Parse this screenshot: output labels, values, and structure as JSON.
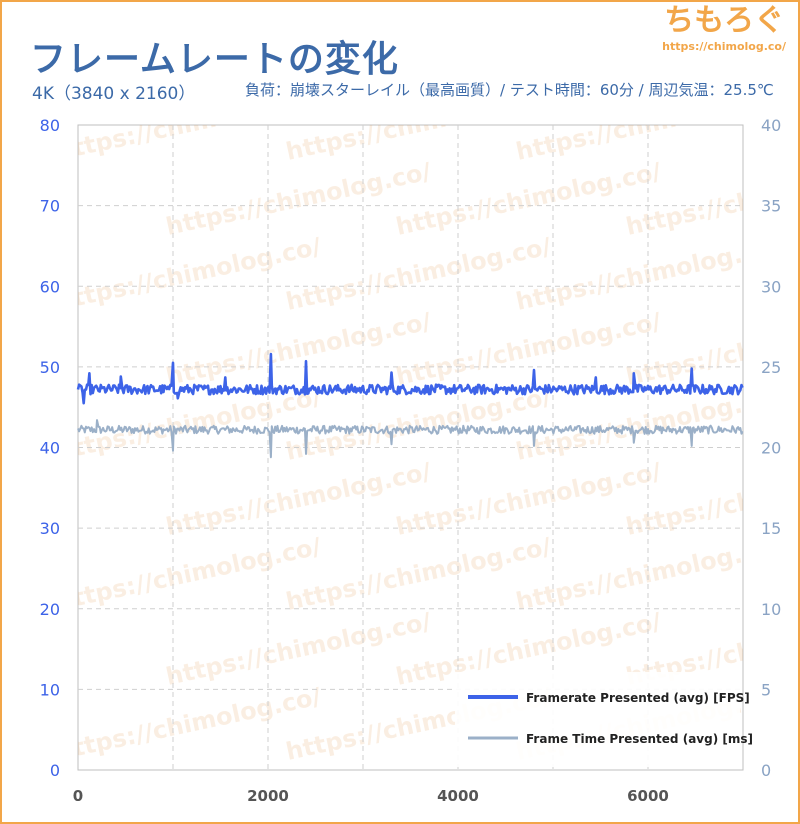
{
  "header": {
    "title": "フレームレートの変化",
    "subtitle_left": "4K（3840 x 2160）",
    "subtitle_right": "負荷：崩壊スターレイル（最高画質）/ テスト時間：60分 / 周辺気温：25.5℃"
  },
  "logo": {
    "text": "ちもろぐ",
    "url": "https://chimolog.co/",
    "watermark_text": "https://chimolog.co/"
  },
  "colors": {
    "accent": "#f2a649",
    "title": "#3c6aa8",
    "fps_series": "#3d63e8",
    "frametime_series": "#9bb0c8",
    "left_axis": "#3d63e8",
    "right_axis": "#8aa3c4"
  },
  "chart_data": {
    "type": "line",
    "title": "",
    "xlabel": "",
    "ylabel": "",
    "xlim": [
      0,
      7000
    ],
    "ylim": [
      0,
      80
    ],
    "y2lim": [
      0,
      40
    ],
    "x_ticks": [
      0,
      2000,
      4000,
      6000
    ],
    "y_ticks": [
      0,
      10,
      20,
      30,
      40,
      50,
      60,
      70,
      80
    ],
    "y2_ticks": [
      0,
      5,
      10,
      15,
      20,
      25,
      30,
      35,
      40
    ],
    "grid": true,
    "legend_position": "bottom-right",
    "series": [
      {
        "name": "Framerate Presented (avg) [FPS]",
        "axis": "left",
        "baseline": 47.2,
        "noise": 0.6,
        "spikes": [
          {
            "x": 120,
            "y": 49.2
          },
          {
            "x": 450,
            "y": 48.8
          },
          {
            "x": 1000,
            "y": 50.5
          },
          {
            "x": 1550,
            "y": 48.7
          },
          {
            "x": 2030,
            "y": 51.6
          },
          {
            "x": 2400,
            "y": 50.7
          },
          {
            "x": 3300,
            "y": 49.3
          },
          {
            "x": 4800,
            "y": 49.6
          },
          {
            "x": 5450,
            "y": 48.7
          },
          {
            "x": 5850,
            "y": 49.2
          },
          {
            "x": 6460,
            "y": 49.8
          }
        ],
        "dips": [
          {
            "x": 60,
            "y": 45.5
          },
          {
            "x": 1050,
            "y": 46.1
          }
        ]
      },
      {
        "name": "Frame Time Presented (avg) [ms]",
        "axis": "right",
        "baseline": 21.1,
        "noise": 0.25,
        "spikes": [
          {
            "x": 200,
            "y": 21.7
          }
        ],
        "dips": [
          {
            "x": 1000,
            "y": 19.8
          },
          {
            "x": 2030,
            "y": 19.4
          },
          {
            "x": 2400,
            "y": 19.6
          },
          {
            "x": 3300,
            "y": 20.2
          },
          {
            "x": 4800,
            "y": 20.1
          },
          {
            "x": 5850,
            "y": 20.3
          },
          {
            "x": 6460,
            "y": 20.1
          }
        ]
      }
    ]
  }
}
